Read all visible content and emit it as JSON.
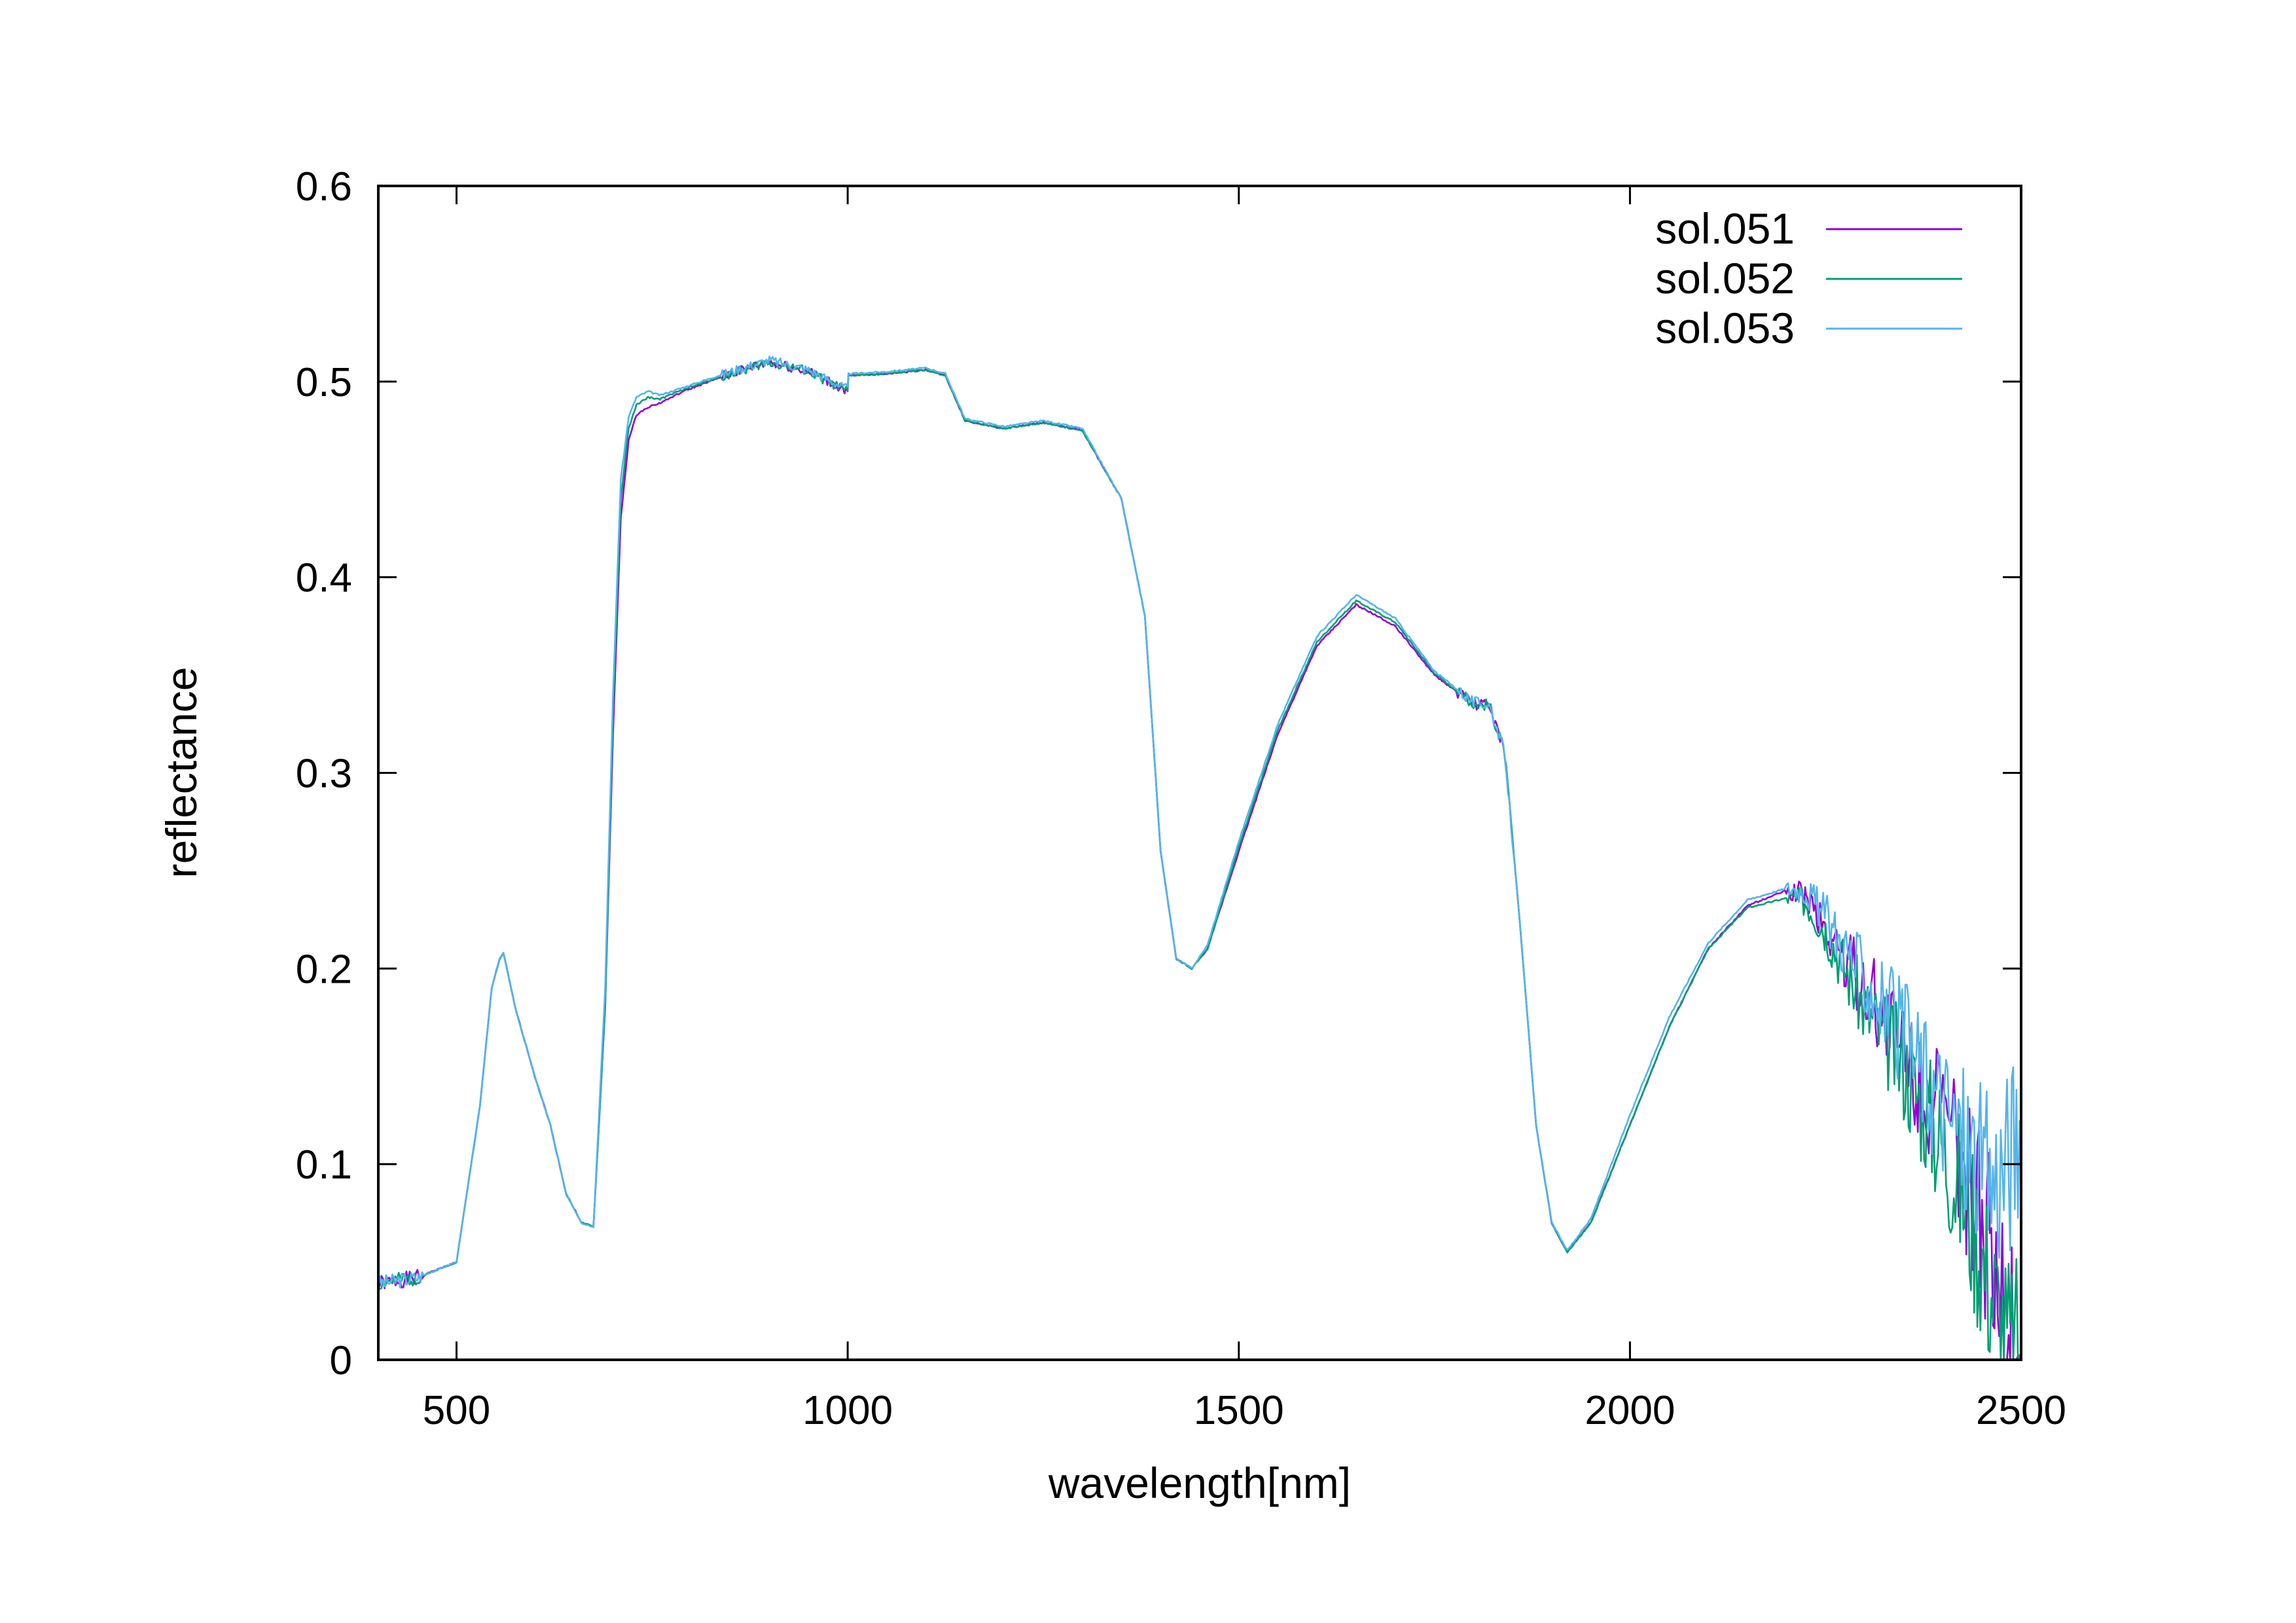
{
  "chart_data": {
    "type": "line",
    "title": "",
    "xlabel": "wavelength[nm]",
    "ylabel": "reflectance",
    "xlim": [
      400,
      2500
    ],
    "ylim": [
      0,
      0.6
    ],
    "xticks": [
      500,
      1000,
      1500,
      2000,
      2500
    ],
    "xtick_labels": [
      "500",
      "1000",
      "1500",
      "2000",
      "2500"
    ],
    "yticks": [
      0,
      0.1,
      0.2,
      0.3,
      0.4,
      0.5,
      0.6
    ],
    "ytick_labels": [
      "0",
      "0.1",
      "0.2",
      "0.3",
      "0.4",
      "0.5",
      "0.6"
    ],
    "grid": false,
    "legend_position": "top-right",
    "series": [
      {
        "name": "sol.051",
        "color": "#9400d3",
        "noise": 1,
        "x": [
          400,
          450,
          500,
          530,
          545,
          555,
          560,
          575,
          600,
          620,
          640,
          660,
          675,
          690,
          700,
          710,
          720,
          730,
          745,
          760,
          790,
          850,
          900,
          950,
          1000,
          1001,
          1050,
          1100,
          1125,
          1150,
          1200,
          1250,
          1300,
          1350,
          1380,
          1400,
          1420,
          1440,
          1460,
          1500,
          1550,
          1600,
          1650,
          1700,
          1750,
          1800,
          1820,
          1840,
          1860,
          1880,
          1900,
          1920,
          1950,
          2000,
          2050,
          2100,
          2150,
          2200,
          2225,
          2250,
          2300,
          2350,
          2400,
          2430,
          2460,
          2480,
          2500
        ],
        "y": [
          0.039,
          0.042,
          0.05,
          0.13,
          0.19,
          0.205,
          0.208,
          0.18,
          0.145,
          0.12,
          0.085,
          0.07,
          0.068,
          0.18,
          0.32,
          0.43,
          0.47,
          0.483,
          0.487,
          0.489,
          0.495,
          0.504,
          0.51,
          0.505,
          0.495,
          0.503,
          0.504,
          0.506,
          0.503,
          0.48,
          0.476,
          0.479,
          0.475,
          0.44,
          0.38,
          0.26,
          0.205,
          0.2,
          0.21,
          0.26,
          0.32,
          0.365,
          0.386,
          0.375,
          0.35,
          0.335,
          0.335,
          0.31,
          0.22,
          0.12,
          0.07,
          0.055,
          0.07,
          0.12,
          0.17,
          0.21,
          0.232,
          0.24,
          0.238,
          0.22,
          0.19,
          0.16,
          0.12,
          0.09,
          0.06,
          0.03,
          0.0
        ]
      },
      {
        "name": "sol.052",
        "color": "#009e73",
        "noise": 2,
        "x": [
          400,
          450,
          500,
          530,
          545,
          555,
          560,
          575,
          600,
          620,
          640,
          660,
          675,
          690,
          700,
          710,
          720,
          730,
          745,
          760,
          790,
          850,
          900,
          950,
          1000,
          1001,
          1050,
          1100,
          1125,
          1150,
          1200,
          1250,
          1300,
          1350,
          1380,
          1400,
          1420,
          1440,
          1460,
          1500,
          1550,
          1600,
          1650,
          1700,
          1750,
          1800,
          1820,
          1840,
          1860,
          1880,
          1900,
          1920,
          1950,
          2000,
          2050,
          2100,
          2150,
          2200,
          2225,
          2250,
          2300,
          2350,
          2400,
          2430,
          2460,
          2480,
          2500
        ],
        "y": [
          0.039,
          0.042,
          0.05,
          0.13,
          0.19,
          0.205,
          0.208,
          0.18,
          0.145,
          0.12,
          0.085,
          0.07,
          0.068,
          0.18,
          0.33,
          0.44,
          0.476,
          0.488,
          0.492,
          0.491,
          0.496,
          0.504,
          0.51,
          0.505,
          0.495,
          0.503,
          0.504,
          0.506,
          0.503,
          0.48,
          0.476,
          0.479,
          0.475,
          0.44,
          0.38,
          0.26,
          0.205,
          0.2,
          0.21,
          0.262,
          0.322,
          0.367,
          0.388,
          0.377,
          0.351,
          0.335,
          0.335,
          0.31,
          0.22,
          0.12,
          0.07,
          0.055,
          0.07,
          0.12,
          0.17,
          0.21,
          0.231,
          0.236,
          0.234,
          0.22,
          0.18,
          0.15,
          0.11,
          0.08,
          0.04,
          0.01,
          0.0
        ]
      },
      {
        "name": "sol.053",
        "color": "#56b4e9",
        "noise": 3,
        "x": [
          400,
          450,
          500,
          530,
          545,
          555,
          560,
          575,
          600,
          620,
          640,
          660,
          675,
          690,
          700,
          710,
          720,
          730,
          745,
          760,
          790,
          850,
          900,
          950,
          1000,
          1001,
          1050,
          1100,
          1125,
          1150,
          1200,
          1250,
          1300,
          1350,
          1380,
          1400,
          1420,
          1440,
          1460,
          1500,
          1550,
          1600,
          1650,
          1700,
          1750,
          1800,
          1820,
          1840,
          1860,
          1880,
          1900,
          1920,
          1950,
          2000,
          2050,
          2100,
          2150,
          2200,
          2225,
          2250,
          2300,
          2350,
          2400,
          2430,
          2460,
          2480,
          2500
        ],
        "y": [
          0.039,
          0.042,
          0.05,
          0.13,
          0.19,
          0.205,
          0.208,
          0.18,
          0.145,
          0.12,
          0.085,
          0.07,
          0.068,
          0.19,
          0.34,
          0.45,
          0.482,
          0.492,
          0.495,
          0.493,
          0.497,
          0.505,
          0.511,
          0.506,
          0.496,
          0.504,
          0.505,
          0.507,
          0.504,
          0.481,
          0.477,
          0.48,
          0.476,
          0.44,
          0.38,
          0.26,
          0.205,
          0.2,
          0.212,
          0.265,
          0.325,
          0.37,
          0.391,
          0.379,
          0.352,
          0.336,
          0.335,
          0.31,
          0.22,
          0.12,
          0.07,
          0.056,
          0.072,
          0.125,
          0.175,
          0.213,
          0.235,
          0.241,
          0.24,
          0.226,
          0.195,
          0.165,
          0.13,
          0.11,
          0.09,
          0.1,
          0.12
        ]
      }
    ]
  }
}
